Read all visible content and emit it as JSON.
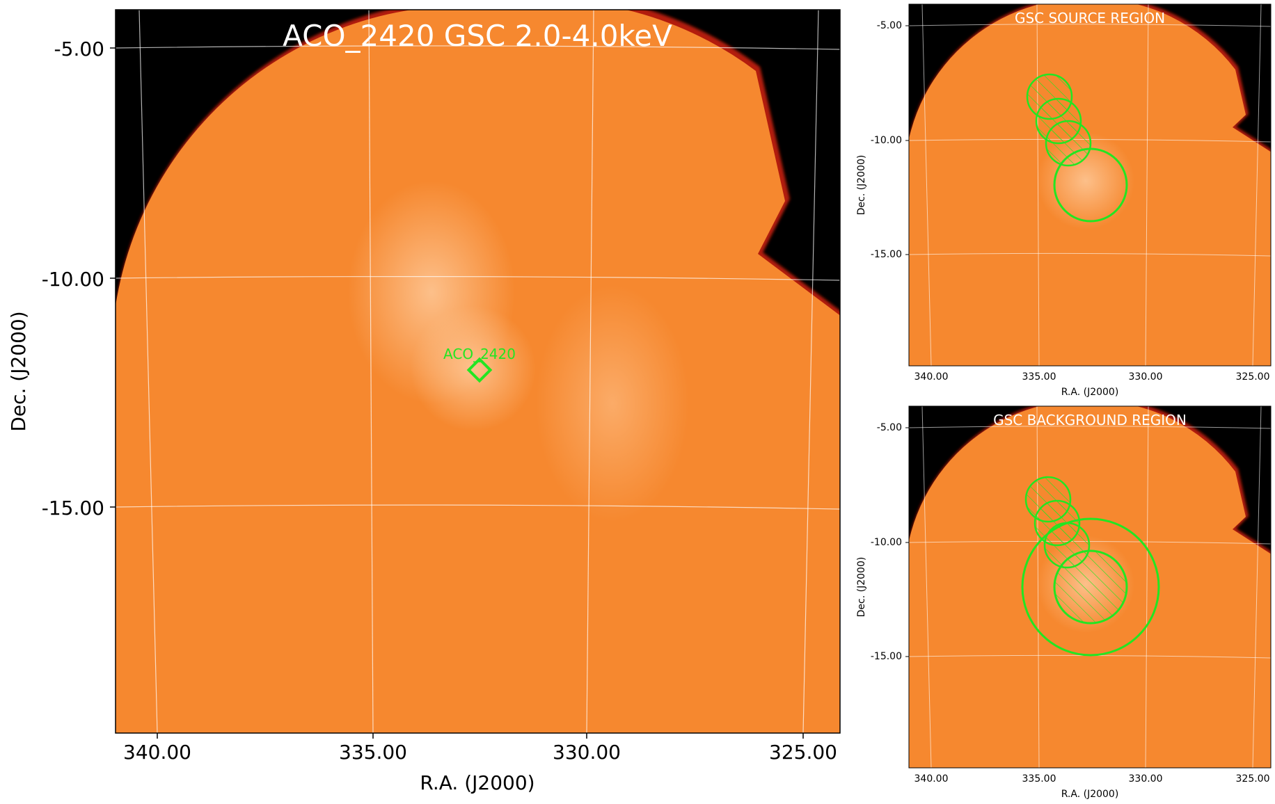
{
  "main_panel": {
    "title": "ACO_2420 GSC 2.0-4.0keV",
    "xlabel": "R.A. (J2000)",
    "ylabel": "Dec. (J2000)",
    "x_ticks": [
      "340.00",
      "335.00",
      "330.00",
      "325.00"
    ],
    "y_ticks": [
      "-5.00",
      "-10.00",
      "-15.00"
    ],
    "source_marker": {
      "label": "ACO_2420",
      "shape": "diamond",
      "color": "#00ff00"
    }
  },
  "source_panel": {
    "title": "GSC SOURCE REGION",
    "xlabel": "R.A. (J2000)",
    "ylabel": "Dec. (J2000)",
    "x_ticks": [
      "340.00",
      "335.00",
      "330.00",
      "325.00"
    ],
    "y_ticks": [
      "-5.00",
      "-10.00",
      "-15.00"
    ]
  },
  "background_panel": {
    "title": "GSC BACKGROUND REGION",
    "xlabel": "R.A. (J2000)",
    "ylabel": "Dec. (J2000)",
    "x_ticks": [
      "340.00",
      "335.00",
      "330.00",
      "325.00"
    ],
    "y_ticks": [
      "-5.00",
      "-10.00",
      "-15.00"
    ]
  },
  "colors": {
    "image_fill": "#f6882f",
    "edge": "#c0200a",
    "region": "#22e622",
    "grid": "#ffffff",
    "frame": "#000000"
  }
}
